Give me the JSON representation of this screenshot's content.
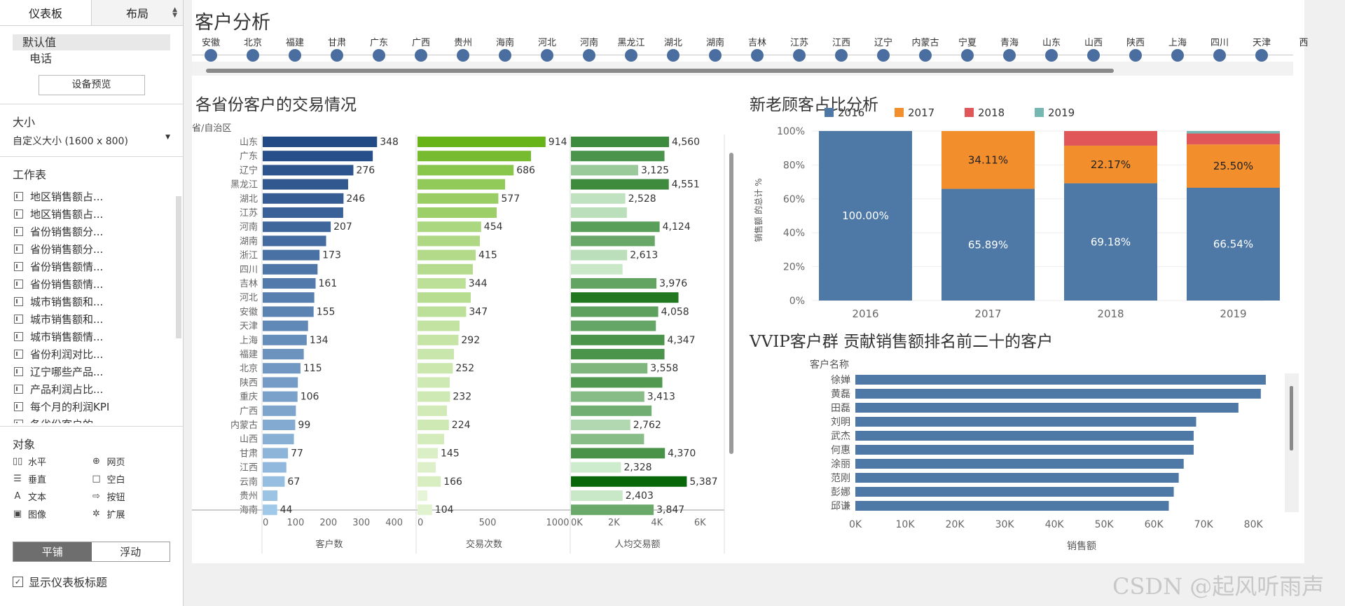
{
  "sidebar": {
    "tab_dashboard": "仪表板",
    "tab_layout": "布局",
    "device_default": "默认值",
    "device_phone": "电话",
    "preview_button": "设备预览",
    "size_title": "大小",
    "size_value": "自定义大小 (1600 x 800)",
    "worksheets_title": "工作表",
    "worksheets": [
      "地区销售额占...",
      "地区销售额占...",
      "省份销售额分...",
      "省份销售额分...",
      "省份销售额情...",
      "省份销售额情...",
      "城市销售额和...",
      "城市销售额和...",
      "城市销售额情...",
      "省份利润对比...",
      "辽宁哪些产品...",
      "产品利润占比...",
      "每个月的利润KPI",
      "各省份客户的..."
    ],
    "objects_title": "对象",
    "objects": [
      {
        "label": "水平",
        "icon": "horizontal-icon"
      },
      {
        "label": "网页",
        "icon": "web-icon"
      },
      {
        "label": "垂直",
        "icon": "vertical-icon"
      },
      {
        "label": "空白",
        "icon": "blank-icon"
      },
      {
        "label": "文本",
        "icon": "text-icon"
      },
      {
        "label": "按钮",
        "icon": "button-icon"
      },
      {
        "label": "图像",
        "icon": "image-icon"
      },
      {
        "label": "扩展",
        "icon": "extension-icon"
      }
    ],
    "tiled": "平铺",
    "floating": "浮动",
    "show_title_check": "✓",
    "show_title": "显示仪表板标题"
  },
  "dashboard": {
    "title": "客户分析",
    "provinces": [
      "安徽",
      "北京",
      "福建",
      "甘肃",
      "广东",
      "广西",
      "贵州",
      "海南",
      "河北",
      "河南",
      "黑龙江",
      "湖北",
      "湖南",
      "吉林",
      "江苏",
      "江西",
      "辽宁",
      "内蒙古",
      "宁夏",
      "青海",
      "山东",
      "山西",
      "陕西",
      "上海",
      "四川",
      "天津",
      "西"
    ],
    "watermark": "CSDN @起风听雨声"
  },
  "colors": {
    "blue": "#4e79a7",
    "orange": "#f28e2b",
    "red": "#e15759",
    "teal": "#76b7b2",
    "dot": "#4a6e9f"
  },
  "chart_data": [
    {
      "type": "bar",
      "title": "各省份客户的交易情况",
      "row_header": "省/自治区",
      "categories": [
        "山东",
        "广东",
        "辽宁",
        "黑龙江",
        "湖北",
        "江苏",
        "河南",
        "湖南",
        "浙江",
        "四川",
        "吉林",
        "河北",
        "安徽",
        "天津",
        "上海",
        "福建",
        "北京",
        "陕西",
        "重庆",
        "广西",
        "内蒙古",
        "山西",
        "甘肃",
        "江西",
        "云南",
        "贵州",
        "海南"
      ],
      "series": [
        {
          "name": "客户数",
          "values": [
            348,
            335,
            276,
            260,
            246,
            245,
            207,
            193,
            173,
            167,
            161,
            157,
            155,
            138,
            134,
            125,
            115,
            107,
            106,
            101,
            99,
            95,
            77,
            72,
            67,
            45,
            44
          ],
          "labels": [
            "348",
            "",
            "276",
            "",
            "246",
            "",
            "207",
            "",
            "173",
            "",
            "161",
            "",
            "155",
            "",
            "134",
            "",
            "115",
            "",
            "106",
            "",
            "99",
            "",
            "77",
            "",
            "67",
            "",
            "44"
          ],
          "ticks": [
            "0",
            "100",
            "200",
            "300",
            "400"
          ],
          "max": 420
        },
        {
          "name": "交易次数",
          "values": [
            914,
            810,
            686,
            625,
            577,
            565,
            454,
            445,
            415,
            395,
            344,
            380,
            347,
            300,
            292,
            260,
            252,
            230,
            232,
            210,
            224,
            190,
            145,
            130,
            166,
            70,
            104
          ],
          "labels": [
            "914",
            "",
            "686",
            "",
            "577",
            "",
            "454",
            "",
            "415",
            "",
            "344",
            "",
            "347",
            "",
            "292",
            "",
            "252",
            "",
            "232",
            "",
            "224",
            "",
            "145",
            "",
            "166",
            "",
            "104"
          ],
          "ticks": [
            "0",
            "500",
            "1000"
          ],
          "max": 1050
        },
        {
          "name": "人均交易额",
          "values": [
            4560,
            4350,
            3125,
            4551,
            2528,
            2600,
            4124,
            3900,
            2613,
            2400,
            3976,
            5000,
            4058,
            3950,
            4347,
            4350,
            3558,
            4250,
            3413,
            3750,
            2762,
            3400,
            4370,
            2328,
            5387,
            2403,
            3847
          ],
          "labels": [
            "4,560",
            "",
            "3,125",
            "4,551",
            "2,528",
            "",
            "4,124",
            "",
            "2,613",
            "",
            "3,976",
            "",
            "4,058",
            "",
            "4,347",
            "",
            "3,558",
            "",
            "3,413",
            "",
            "2,762",
            "",
            "4,370",
            "2,328",
            "5,387",
            "2,403",
            "3,847"
          ],
          "ticks": [
            "0K",
            "2K",
            "4K",
            "6K"
          ],
          "max": 7100
        }
      ]
    },
    {
      "type": "bar",
      "stacked": true,
      "title": "新老顾客占比分析",
      "ylabel": "销售额 的总计 %",
      "categories": [
        "2016",
        "2017",
        "2018",
        "2019"
      ],
      "series": [
        {
          "name": "2016",
          "values": [
            100.0,
            65.89,
            69.18,
            66.54
          ]
        },
        {
          "name": "2017",
          "values": [
            0,
            34.11,
            22.17,
            25.5
          ]
        },
        {
          "name": "2018",
          "values": [
            0,
            0,
            8.65,
            6.5
          ]
        },
        {
          "name": "2019",
          "values": [
            0,
            0,
            0,
            1.46
          ]
        }
      ],
      "labels": [
        [
          "100.00%",
          "",
          "",
          ""
        ],
        [
          "65.89%",
          "34.11%",
          "",
          ""
        ],
        [
          "69.18%",
          "22.17%",
          "",
          ""
        ],
        [
          "66.54%",
          "25.50%",
          "",
          ""
        ]
      ],
      "yticks": [
        "0%",
        "20%",
        "40%",
        "60%",
        "80%",
        "100%"
      ],
      "ylim": [
        0,
        100
      ],
      "legend": [
        "2016",
        "2017",
        "2018",
        "2019"
      ]
    },
    {
      "type": "bar",
      "title": "VVIP客户群 贡献销售额排名前二十的客户",
      "row_header": "客户名称",
      "xlabel": "销售额",
      "categories": [
        "徐婵",
        "黄磊",
        "田磊",
        "刘明",
        "武杰",
        "何惠",
        "涂丽",
        "范刚",
        "彭娜",
        "邱谦"
      ],
      "values": [
        82500,
        81500,
        77000,
        68500,
        68000,
        68000,
        66000,
        65000,
        64000,
        63000
      ],
      "xticks": [
        "0K",
        "10K",
        "20K",
        "30K",
        "40K",
        "50K",
        "60K",
        "70K",
        "80K"
      ],
      "xlim": [
        0,
        88000
      ]
    }
  ]
}
